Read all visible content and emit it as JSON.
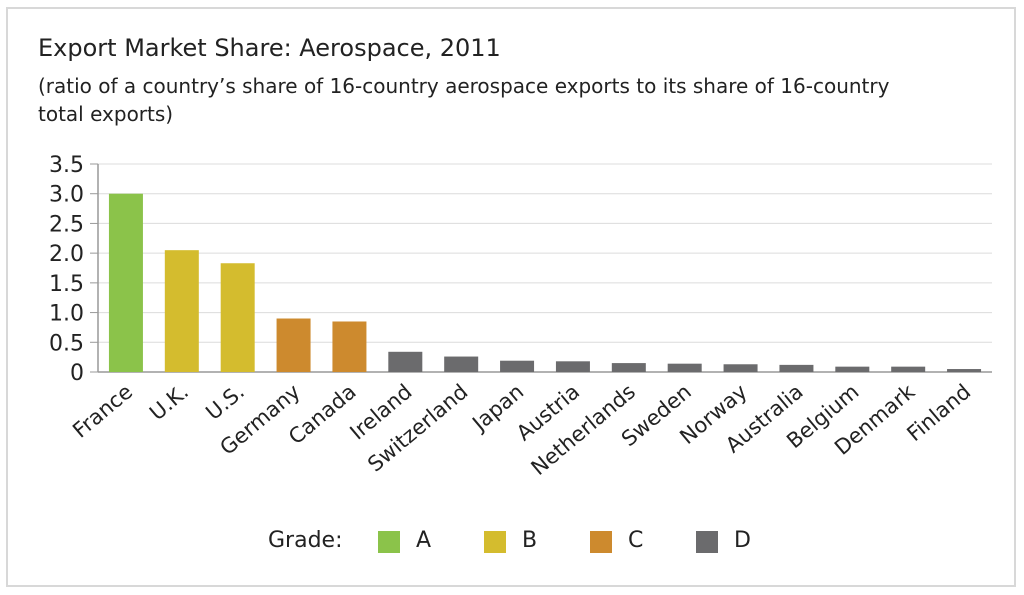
{
  "chart_data": {
    "type": "bar",
    "title": "Export Market Share: Aerospace, 2011",
    "subtitle": "(ratio of a country’s share of 16-country aerospace exports to its share of 16-country total exports)",
    "categories": [
      "France",
      "U.K.",
      "U.S.",
      "Germany",
      "Canada",
      "Ireland",
      "Switzerland",
      "Japan",
      "Austria",
      "Netherlands",
      "Sweden",
      "Norway",
      "Australia",
      "Belgium",
      "Denmark",
      "Finland"
    ],
    "values": [
      3.0,
      2.05,
      1.83,
      0.9,
      0.85,
      0.34,
      0.26,
      0.19,
      0.18,
      0.15,
      0.14,
      0.13,
      0.12,
      0.09,
      0.09,
      0.05
    ],
    "grades": [
      "A",
      "B",
      "B",
      "C",
      "C",
      "D",
      "D",
      "D",
      "D",
      "D",
      "D",
      "D",
      "D",
      "D",
      "D",
      "D"
    ],
    "ylim": [
      0,
      3.5
    ],
    "yticks": [
      "0",
      "0.5",
      "1.0",
      "1.5",
      "2.0",
      "2.5",
      "3.0",
      "3.5"
    ],
    "xlabel": "",
    "ylabel": "",
    "grid": true,
    "legend": {
      "title": "Grade:",
      "placement": "bottom",
      "items": [
        {
          "label": "A",
          "color": "#8bc34a"
        },
        {
          "label": "B",
          "color": "#d4bc2e"
        },
        {
          "label": "C",
          "color": "#cd8a2e"
        },
        {
          "label": "D",
          "color": "#6b6b6d"
        }
      ]
    }
  }
}
